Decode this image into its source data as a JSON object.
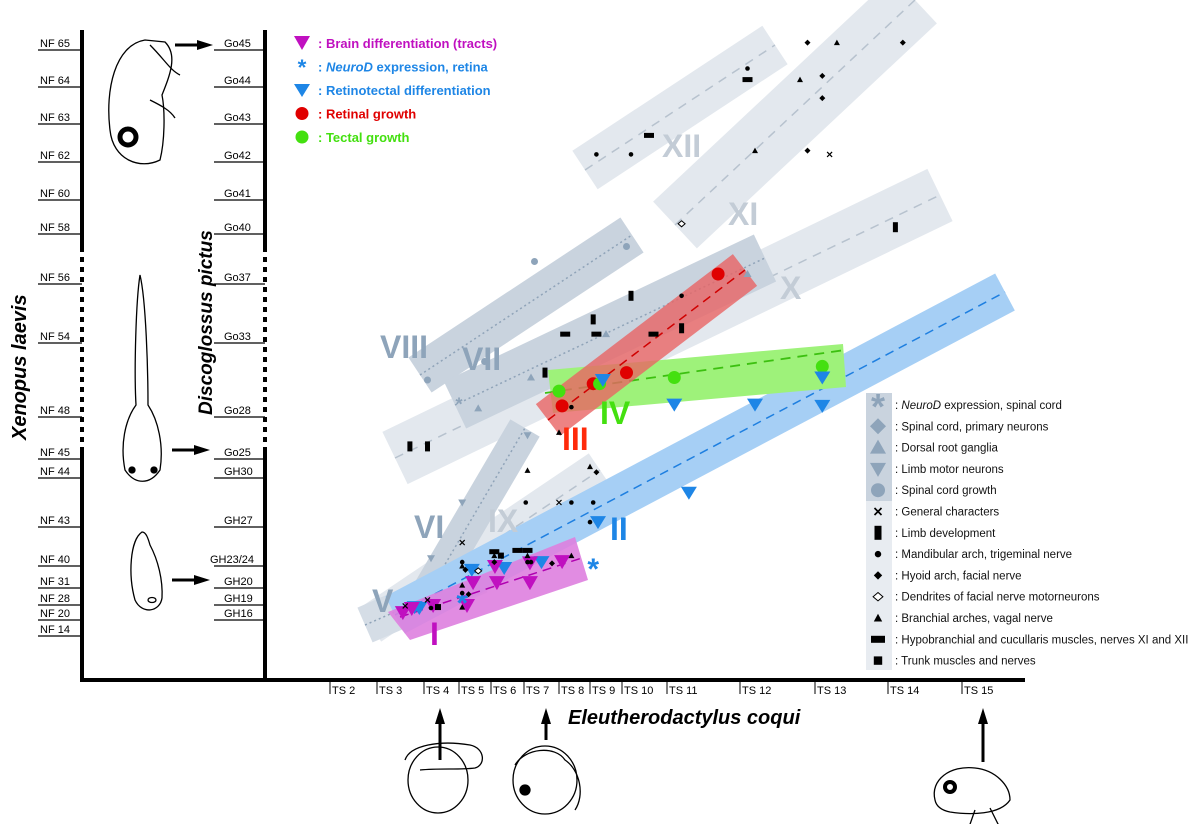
{
  "chart_data": {
    "type": "scatter",
    "xlabel": "Eleutherodactylus coqui",
    "ylabel_left": "Xenopus laevis",
    "ylabel_right": "Discoglossus pictus",
    "x_ticks": [
      "TS 2",
      "TS 3",
      "TS 4",
      "TS 5",
      "TS 6",
      "TS 7",
      "TS 8",
      "TS 9",
      "TS 10",
      "TS 11",
      "TS 12",
      "TS 13",
      "TS 14",
      "TS 15"
    ],
    "y_ticks_left": [
      "NF 65",
      "NF 64",
      "NF 63",
      "NF 62",
      "NF 60",
      "NF 58",
      "NF 56",
      "NF 54",
      "NF 48",
      "NF 45",
      "NF 44",
      "NF 43",
      "NF 40",
      "NF 31",
      "NF 28",
      "NF 20",
      "NF 14"
    ],
    "y_ticks_right": [
      "Go45",
      "Go44",
      "Go43",
      "Go42",
      "Go41",
      "Go40",
      "Go37",
      "Go33",
      "Go28",
      "Go25",
      "GH30",
      "GH27",
      "GH23/24",
      "GH20",
      "GH19",
      "GH16"
    ],
    "x_unit": "TS stage (E. coqui)",
    "y_unit": "NF stage (X. laevis)",
    "colors": {
      "brain": "#c010c0",
      "neurod_retina": "#1e86e6",
      "retinotectal": "#1e86e6",
      "retinal": "#e00000",
      "tectal": "#44e010",
      "spinal": "#8ea4ba",
      "black": "#000000"
    },
    "legend_top": [
      {
        "marker": "brain",
        "label": ": Brain differentiation (tracts)",
        "color": "#c010c0"
      },
      {
        "marker": "neurod_retina",
        "label_italic": "NeuroD",
        "label": " expression, retina",
        "color": "#1e86e6"
      },
      {
        "marker": "retinotectal",
        "label": ": Retinotectal differentiation",
        "color": "#1e86e6"
      },
      {
        "marker": "retinal",
        "label": ": Retinal growth",
        "color": "#e00000"
      },
      {
        "marker": "tectal",
        "label": ": Tectal growth",
        "color": "#44e010"
      }
    ],
    "legend_right": [
      {
        "marker": "sc_neurod",
        "label_italic": "NeuroD",
        "label": " expression, spinal cord"
      },
      {
        "marker": "sc_primary",
        "label": ": Spinal cord, primary neurons"
      },
      {
        "marker": "drg",
        "label": ": Dorsal root ganglia"
      },
      {
        "marker": "lmn",
        "label": ": Limb motor neurons"
      },
      {
        "marker": "sc_growth",
        "label": ": Spinal cord growth"
      },
      {
        "marker": "general",
        "label": ": General characters"
      },
      {
        "marker": "limb",
        "label": ": Limb development"
      },
      {
        "marker": "mandibular",
        "label": ": Mandibular arch, trigeminal nerve"
      },
      {
        "marker": "hyoid",
        "label": ": Hyoid arch, facial nerve"
      },
      {
        "marker": "dendrites",
        "label": ": Dendrites of facial nerve motorneurons"
      },
      {
        "marker": "branchial",
        "label": ": Branchial arches, vagal nerve"
      },
      {
        "marker": "hypo",
        "label": ": Hypobranchial and cucullaris muscles, nerves XI and XII"
      },
      {
        "marker": "trunk",
        "label": ": Trunk muscles and nerves"
      }
    ],
    "bands": [
      {
        "label": "I",
        "color": "#c010c0"
      },
      {
        "label": "II",
        "color": "#1e86e6"
      },
      {
        "label": "III",
        "color": "#ff2a0a"
      },
      {
        "label": "IV",
        "color": "#44e010"
      },
      {
        "label": "V",
        "color": "#8ea4ba"
      },
      {
        "label": "VI",
        "color": "#8ea4ba"
      },
      {
        "label": "VII",
        "color": "#8ea4ba"
      },
      {
        "label": "VIII",
        "color": "#8ea4ba"
      },
      {
        "label": "IX",
        "color": "#c3ccd6"
      },
      {
        "label": "X",
        "color": "#c3ccd6"
      },
      {
        "label": "XI",
        "color": "#c3ccd6"
      },
      {
        "label": "XII",
        "color": "#c3ccd6"
      }
    ],
    "points": [
      {
        "m": "retinal",
        "x": 8.1,
        "y": 48.9
      },
      {
        "m": "retinal",
        "x": 9.1,
        "y": 50.7
      },
      {
        "m": "retinal",
        "x": 10.1,
        "y": 51.6
      },
      {
        "m": "retinal",
        "x": 11.7,
        "y": 56.4
      },
      {
        "m": "tectal",
        "x": 8.0,
        "y": 50.1
      },
      {
        "m": "tectal",
        "x": 9.3,
        "y": 50.7
      },
      {
        "m": "tectal",
        "x": 11.1,
        "y": 51.2
      },
      {
        "m": "tectal",
        "x": 13.1,
        "y": 52.1
      },
      {
        "m": "retinotectal",
        "x": 9.4,
        "y": 51.0
      },
      {
        "m": "retinotectal",
        "x": 11.1,
        "y": 49.0
      },
      {
        "m": "retinotectal",
        "x": 12.2,
        "y": 49.0
      },
      {
        "m": "retinotectal",
        "x": 13.1,
        "y": 51.2
      },
      {
        "m": "retinotectal",
        "x": 13.1,
        "y": 48.9
      },
      {
        "m": "retinotectal",
        "x": 11.3,
        "y": 43.7
      },
      {
        "m": "retinotectal",
        "x": 9.25,
        "y": 43.1
      },
      {
        "m": "retinotectal",
        "x": 5.4,
        "y": 38.4
      },
      {
        "m": "retinotectal",
        "x": 6.4,
        "y": 39.2
      },
      {
        "m": "retinotectal",
        "x": 7.5,
        "y": 40.3
      },
      {
        "m": "retinotectal",
        "x": 3.9,
        "y": 26.4
      },
      {
        "m": "retinotectal",
        "x": 3.8,
        "y": 26.9
      },
      {
        "m": "brain",
        "x": 3.55,
        "y": 23.7
      },
      {
        "m": "brain",
        "x": 3.74,
        "y": 25.9
      },
      {
        "m": "brain",
        "x": 4.26,
        "y": 27.5
      },
      {
        "m": "brain",
        "x": 5.25,
        "y": 27.5
      },
      {
        "m": "brain",
        "x": 5.44,
        "y": 33.0
      },
      {
        "m": "brain",
        "x": 6.18,
        "y": 33.0
      },
      {
        "m": "brain",
        "x": 7.17,
        "y": 33.0
      },
      {
        "m": "brain",
        "x": 7.17,
        "y": 40.2
      },
      {
        "m": "brain",
        "x": 6.12,
        "y": 39.6
      },
      {
        "m": "brain",
        "x": 8.1,
        "y": 40.3
      },
      {
        "m": "neurod_retina",
        "x": 5.1,
        "y": 28.5
      },
      {
        "m": "neurod_retina",
        "x": 9.1,
        "y": 39.2
      },
      {
        "m": "sc_growth",
        "x": 7.3,
        "y": 56.9
      },
      {
        "m": "sc_growth",
        "x": 10.1,
        "y": 57.5
      },
      {
        "m": "sc_growth",
        "x": 5.8,
        "y": 52.5
      },
      {
        "m": "sc_growth",
        "x": 4.1,
        "y": 51.0
      },
      {
        "m": "sc_neurod",
        "x": 5.0,
        "y": 49.1
      },
      {
        "m": "drg",
        "x": 5.6,
        "y": 48.7
      },
      {
        "m": "drg",
        "x": 7.2,
        "y": 51.2
      },
      {
        "m": "drg",
        "x": 9.5,
        "y": 54.3
      },
      {
        "m": "drg",
        "x": 12.1,
        "y": 56.4
      },
      {
        "m": "lmn",
        "x": 7.1,
        "y": 46.7
      },
      {
        "m": "lmn",
        "x": 5.1,
        "y": 43.5
      },
      {
        "m": "lmn",
        "x": 4.2,
        "y": 40.6
      },
      {
        "m": "mandibular",
        "x": 9.2,
        "y": 62.2
      },
      {
        "m": "mandibular",
        "x": 10.2,
        "y": 62.2
      },
      {
        "m": "hypo",
        "x": 10.6,
        "y": 62.7
      },
      {
        "m": "mandibular",
        "x": 12.1,
        "y": 64.5
      },
      {
        "m": "hypo",
        "x": 12.1,
        "y": 64.2
      },
      {
        "m": "hyoid",
        "x": 12.9,
        "y": 65.2
      },
      {
        "m": "branchial",
        "x": 13.3,
        "y": 65.2
      },
      {
        "m": "hyoid",
        "x": 14.2,
        "y": 65.2
      },
      {
        "m": "branchial",
        "x": 12.8,
        "y": 64.2
      },
      {
        "m": "hyoid",
        "x": 13.1,
        "y": 64.3
      },
      {
        "m": "hyoid",
        "x": 13.1,
        "y": 63.7
      },
      {
        "m": "branchial",
        "x": 12.2,
        "y": 62.3
      },
      {
        "m": "hyoid",
        "x": 12.9,
        "y": 62.3
      },
      {
        "m": "general",
        "x": 13.2,
        "y": 62.2
      },
      {
        "m": "dendrites",
        "x": 11.2,
        "y": 58.6
      },
      {
        "m": "limb",
        "x": 14.1,
        "y": 58.4
      },
      {
        "m": "limb",
        "x": 10.2,
        "y": 55.6
      },
      {
        "m": "mandibular",
        "x": 11.2,
        "y": 55.6
      },
      {
        "m": "limb",
        "x": 9.1,
        "y": 54.8
      },
      {
        "m": "limb",
        "x": 11.2,
        "y": 54.5
      },
      {
        "m": "hypo",
        "x": 8.2,
        "y": 54.3
      },
      {
        "m": "hypo",
        "x": 9.2,
        "y": 54.3
      },
      {
        "m": "hypo",
        "x": 10.7,
        "y": 54.3
      },
      {
        "m": "limb",
        "x": 7.6,
        "y": 51.6
      },
      {
        "m": "mandibular",
        "x": 8.4,
        "y": 48.8
      },
      {
        "m": "limb",
        "x": 3.7,
        "y": 45.9
      },
      {
        "m": "limb",
        "x": 4.1,
        "y": 45.9
      },
      {
        "m": "branchial",
        "x": 8.0,
        "y": 46.9
      },
      {
        "m": "branchial",
        "x": 7.1,
        "y": 44.4
      },
      {
        "m": "branchial",
        "x": 9.0,
        "y": 44.6
      },
      {
        "m": "hyoid",
        "x": 9.2,
        "y": 44.3
      },
      {
        "m": "mandibular",
        "x": 7.05,
        "y": 43.5
      },
      {
        "m": "general",
        "x": 8.0,
        "y": 43.5
      },
      {
        "m": "mandibular",
        "x": 8.4,
        "y": 43.5
      },
      {
        "m": "mandibular",
        "x": 9.1,
        "y": 43.5
      },
      {
        "m": "mandibular",
        "x": 9.0,
        "y": 43.1
      },
      {
        "m": "general",
        "x": 5.1,
        "y": 41.8
      },
      {
        "m": "hypo",
        "x": 6.1,
        "y": 41.1
      },
      {
        "m": "hypo",
        "x": 6.8,
        "y": 41.2
      },
      {
        "m": "hypo",
        "x": 7.1,
        "y": 41.2
      },
      {
        "m": "branchial",
        "x": 6.1,
        "y": 40.8
      },
      {
        "m": "trunk",
        "x": 6.3,
        "y": 40.8
      },
      {
        "m": "mandibular",
        "x": 5.1,
        "y": 40.3
      },
      {
        "m": "branchial",
        "x": 5.1,
        "y": 40.0
      },
      {
        "m": "hyoid",
        "x": 5.2,
        "y": 38.4
      },
      {
        "m": "dendrites",
        "x": 5.6,
        "y": 38.0
      },
      {
        "m": "branchial",
        "x": 5.1,
        "y": 32.2
      },
      {
        "m": "mandibular",
        "x": 5.1,
        "y": 30.1
      },
      {
        "m": "hyoid",
        "x": 5.3,
        "y": 29.9
      },
      {
        "m": "branchial",
        "x": 5.1,
        "y": 26.9
      },
      {
        "m": "general",
        "x": 4.1,
        "y": 28.9
      },
      {
        "m": "mandibular",
        "x": 4.2,
        "y": 26.4
      },
      {
        "m": "trunk",
        "x": 4.4,
        "y": 26.9
      },
      {
        "m": "general",
        "x": 3.6,
        "y": 27.5
      },
      {
        "m": "branchial",
        "x": 8.4,
        "y": 40.8
      },
      {
        "m": "hyoid",
        "x": 7.8,
        "y": 40.2
      },
      {
        "m": "mandibular",
        "x": 7.1,
        "y": 40.3
      },
      {
        "m": "branchial",
        "x": 7.1,
        "y": 40.8
      },
      {
        "m": "hyoid",
        "x": 6.1,
        "y": 40.3
      },
      {
        "m": "mandibular",
        "x": 7.2,
        "y": 40.3
      }
    ]
  }
}
